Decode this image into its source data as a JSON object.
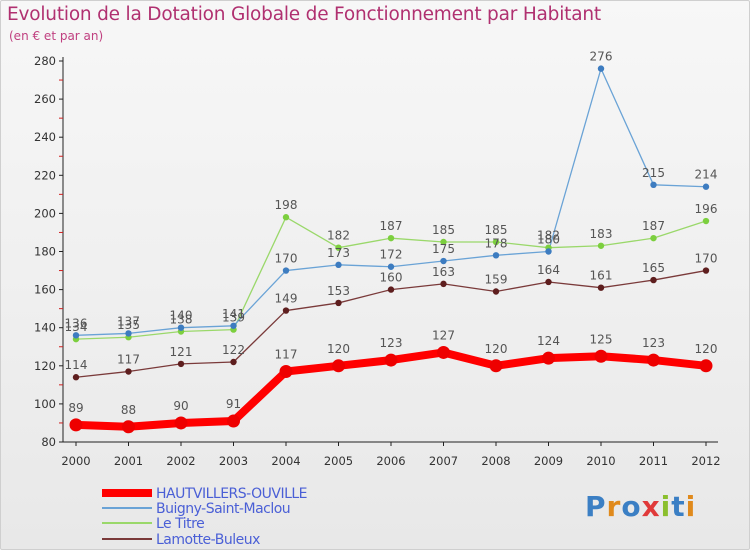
{
  "title": "Evolution de la Dotation Globale de Fonctionnement par Habitant",
  "subtitle": "(en € et par an)",
  "logo": {
    "letters": [
      "P",
      "r",
      "o",
      "x",
      "i",
      "t",
      "i"
    ],
    "colors": [
      "#3b7fc4",
      "#e08a1c",
      "#3b7fc4",
      "#e03a3a",
      "#8bbf2e",
      "#3b7fc4",
      "#e08a1c"
    ]
  },
  "chart_data": {
    "type": "line",
    "title": "Evolution de la Dotation Globale de Fonctionnement par Habitant",
    "subtitle": "(en € et par an)",
    "xlabel": "",
    "ylabel": "",
    "ylim": [
      80,
      280
    ],
    "yticks": [
      "80",
      "100",
      "120",
      "140",
      "160",
      "180",
      "200",
      "220",
      "240",
      "260",
      "280"
    ],
    "x": [
      "2000",
      "2001",
      "2002",
      "2003",
      "2004",
      "2005",
      "2006",
      "2007",
      "2008",
      "2009",
      "2010",
      "2011",
      "2012"
    ],
    "grid": false,
    "legend_position": "bottom-left",
    "series": [
      {
        "name": "HAUTVILLERS-OUVILLE",
        "color": "#ff0000",
        "marker": "#ee0000",
        "width": 8,
        "labelColor": "#555555",
        "values": [
          89,
          88,
          90,
          91,
          117,
          120,
          123,
          127,
          120,
          124,
          125,
          123,
          120
        ],
        "labels": [
          "89",
          "88",
          "90",
          "91",
          "117",
          "120",
          "123",
          "127",
          "120",
          "124",
          "125",
          "123",
          "120"
        ]
      },
      {
        "name": "Buigny-Saint-Maclou",
        "color": "#6aa3d6",
        "marker": "#3d7cc0",
        "width": 1.3,
        "labelColor": "#555555",
        "values": [
          136,
          137,
          140,
          141,
          170,
          173,
          172,
          175,
          178,
          180,
          276,
          215,
          214
        ],
        "labels": [
          "136",
          "137",
          "140",
          "141",
          "170",
          "173",
          "172",
          "175",
          "178",
          "180",
          "276",
          "215",
          "214"
        ]
      },
      {
        "name": "Le Titre",
        "color": "#9ad86a",
        "marker": "#7ccf3e",
        "width": 1.3,
        "labelColor": "#555555",
        "values": [
          134,
          135,
          138,
          139,
          198,
          182,
          187,
          185,
          185,
          182,
          183,
          187,
          196
        ],
        "labels": [
          "134",
          "135",
          "138",
          "139",
          "198",
          "182",
          "187",
          "185",
          "185",
          "182",
          "183",
          "187",
          "196"
        ]
      },
      {
        "name": "Lamotte-Buleux",
        "color": "#7a3a3a",
        "marker": "#5e1e1e",
        "width": 1.3,
        "labelColor": "#555555",
        "values": [
          114,
          117,
          121,
          122,
          149,
          153,
          160,
          163,
          159,
          164,
          161,
          165,
          170
        ],
        "labels": [
          "114",
          "117",
          "121",
          "122",
          "149",
          "153",
          "160",
          "163",
          "159",
          "164",
          "161",
          "165",
          "170"
        ]
      }
    ]
  }
}
